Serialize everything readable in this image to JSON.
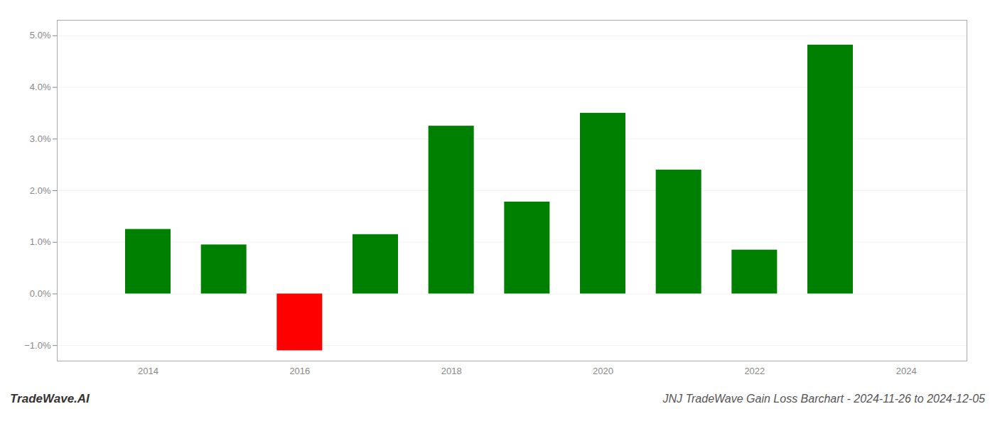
{
  "chart_data": {
    "type": "bar",
    "title": "JNJ TradeWave Gain Loss Barchart - 2024-11-26 to 2024-12-05",
    "annotations": [
      "TradeWave.AI"
    ],
    "x": [
      2014,
      2015,
      2016,
      2017,
      2018,
      2019,
      2020,
      2021,
      2022,
      2023
    ],
    "values": [
      0.0125,
      0.0095,
      -0.011,
      0.0115,
      0.0325,
      0.0178,
      0.035,
      0.024,
      0.0085,
      0.0482
    ],
    "colors": [
      "#008000",
      "#008000",
      "#ff0000",
      "#008000",
      "#008000",
      "#008000",
      "#008000",
      "#008000",
      "#008000",
      "#008000"
    ],
    "xlim": [
      2012.8,
      2024.8
    ],
    "xticks": [
      2014,
      2016,
      2018,
      2020,
      2022,
      2024
    ],
    "ylim": [
      -0.013,
      0.053
    ],
    "yticks": [
      {
        "value": -0.01,
        "label": "−1.0%"
      },
      {
        "value": 0.0,
        "label": "0.0%"
      },
      {
        "value": 0.01,
        "label": "1.0%"
      },
      {
        "value": 0.02,
        "label": "2.0%"
      },
      {
        "value": 0.03,
        "label": "3.0%"
      },
      {
        "value": 0.04,
        "label": "4.0%"
      },
      {
        "value": 0.05,
        "label": "5.0%"
      }
    ],
    "grid": true
  }
}
